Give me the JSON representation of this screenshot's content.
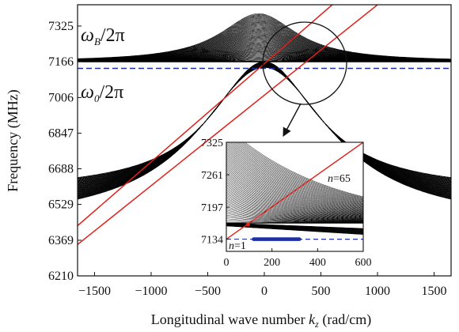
{
  "chart_data": [
    {
      "type": "line",
      "xlabel_main": "Longitudinal wave number ",
      "xlabel_var": "k",
      "xlabel_sub": "z",
      "xlabel_unit": " (rad/cm)",
      "ylabel": "Frequency (MHz)",
      "xlim": [
        -1650,
        1650
      ],
      "ylim": [
        6210,
        7420
      ],
      "x_ticks": [
        "-1500",
        "-1000",
        "-500",
        "0",
        "500",
        "1000",
        "1500"
      ],
      "y_ticks": [
        "6210",
        "6369",
        "6529",
        "6688",
        "6847",
        "7006",
        "7166",
        "7325"
      ],
      "annotations": {
        "omega_b_sym": "ω",
        "omega_b_sub": "B",
        "omega_b_rest": "/2π",
        "omega_0_sym": "ω",
        "omega_0_sub": "0",
        "omega_0_rest": "/2π"
      },
      "series": [
        {
          "kind": "upper_branch_family",
          "count": 65,
          "flat_level": 7166,
          "peak_top": 7380,
          "peak_bottom": 7166,
          "color": "#000000"
        },
        {
          "kind": "lower_branch_family",
          "count": 65,
          "peak_top": 7166,
          "peak_bottom": 7140,
          "tail_top": 6590,
          "tail_bottom": 6440,
          "color": "#000000"
        },
        {
          "kind": "horizontal_line",
          "y": 7166,
          "style": "solid",
          "color": "#000000"
        },
        {
          "kind": "horizontal_line",
          "y": 7136,
          "style": "dashed",
          "color": "#1f2fa6"
        },
        {
          "kind": "light_line",
          "points": [
            [
              -1650,
              6434
            ],
            [
              600,
              7420
            ]
          ],
          "color": "#e0201a"
        },
        {
          "kind": "light_line",
          "points": [
            [
              -1650,
              6350
            ],
            [
              1000,
              7420
            ]
          ],
          "color": "#e0201a"
        }
      ]
    },
    {
      "type": "line",
      "panel": "inset",
      "xlim": [
        0,
        600
      ],
      "ylim": [
        7110,
        7325
      ],
      "x_ticks": [
        "0",
        "200",
        "400",
        "600"
      ],
      "y_ticks": [
        "7134",
        "7197",
        "7261",
        "7325"
      ],
      "labels": {
        "n_top": "n",
        "n_top_value": "=65",
        "n_bottom": "n",
        "n_bottom_value": "=1"
      },
      "series": [
        {
          "kind": "branch_family",
          "count": 65,
          "color": "#000000"
        },
        {
          "kind": "horizontal_line",
          "y": 7166,
          "style": "solid",
          "color": "#000000"
        },
        {
          "kind": "horizontal_line",
          "y": 7134,
          "style": "dashed",
          "color": "#1f2fa6"
        },
        {
          "kind": "light_line",
          "points": [
            [
              0,
              7134
            ],
            [
              600,
              7325
            ]
          ],
          "color": "#e0201a"
        },
        {
          "kind": "dot_band",
          "y": 7134,
          "x_range": [
            120,
            320
          ],
          "color": "#1f2fa6"
        }
      ]
    }
  ]
}
